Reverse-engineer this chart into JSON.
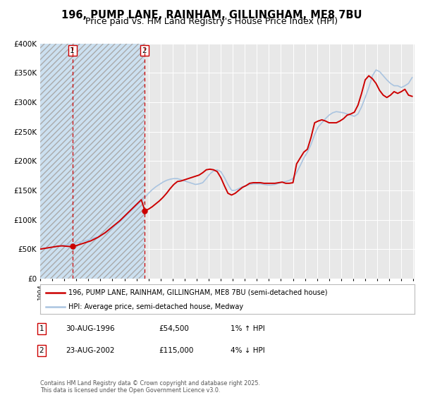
{
  "title": "196, PUMP LANE, RAINHAM, GILLINGHAM, ME8 7BU",
  "subtitle": "Price paid vs. HM Land Registry's House Price Index (HPI)",
  "title_fontsize": 10.5,
  "subtitle_fontsize": 9,
  "background_color": "#ffffff",
  "plot_bg_color": "#e8e8e8",
  "grid_color": "#ffffff",
  "hpi_color": "#aac4e0",
  "price_color": "#cc0000",
  "hatch_color": "#bbbbbb",
  "hatch_bg_color": "#ddeeff",
  "marker1_label": "1",
  "marker2_label": "2",
  "sale1_date": "30-AUG-1996",
  "sale1_price": "£54,500",
  "sale1_hpi": "1% ↑ HPI",
  "sale2_date": "23-AUG-2002",
  "sale2_price": "£115,000",
  "sale2_hpi": "4% ↓ HPI",
  "legend_label_price": "196, PUMP LANE, RAINHAM, GILLINGHAM, ME8 7BU (semi-detached house)",
  "legend_label_hpi": "HPI: Average price, semi-detached house, Medway",
  "footer": "Contains HM Land Registry data © Crown copyright and database right 2025.\nThis data is licensed under the Open Government Licence v3.0.",
  "ylim": [
    0,
    400000
  ],
  "yticks": [
    0,
    50000,
    100000,
    150000,
    200000,
    250000,
    300000,
    350000,
    400000
  ],
  "ytick_labels": [
    "£0",
    "£50K",
    "£100K",
    "£150K",
    "£200K",
    "£250K",
    "£300K",
    "£350K",
    "£400K"
  ],
  "year_start": 1994,
  "year_end": 2025,
  "sale1_year": 1996.67,
  "sale1_value": 54500,
  "sale2_year": 2002.65,
  "sale2_value": 115000,
  "hpi_years": [
    1994.0,
    1994.3,
    1994.6,
    1994.9,
    1995.2,
    1995.5,
    1995.8,
    1996.1,
    1996.4,
    1996.7,
    1997.0,
    1997.3,
    1997.6,
    1997.9,
    1998.2,
    1998.5,
    1998.8,
    1999.1,
    1999.4,
    1999.7,
    2000.0,
    2000.3,
    2000.6,
    2000.9,
    2001.2,
    2001.5,
    2001.8,
    2002.1,
    2002.4,
    2002.7,
    2003.0,
    2003.3,
    2003.6,
    2003.9,
    2004.2,
    2004.5,
    2004.8,
    2005.1,
    2005.4,
    2005.7,
    2006.0,
    2006.3,
    2006.6,
    2006.9,
    2007.2,
    2007.5,
    2007.8,
    2008.1,
    2008.4,
    2008.7,
    2009.0,
    2009.3,
    2009.6,
    2009.9,
    2010.2,
    2010.5,
    2010.8,
    2011.1,
    2011.4,
    2011.7,
    2012.0,
    2012.3,
    2012.6,
    2012.9,
    2013.2,
    2013.5,
    2013.8,
    2014.1,
    2014.4,
    2014.7,
    2015.0,
    2015.3,
    2015.6,
    2015.9,
    2016.2,
    2016.5,
    2016.8,
    2017.1,
    2017.4,
    2017.7,
    2018.0,
    2018.3,
    2018.6,
    2018.9,
    2019.2,
    2019.5,
    2019.8,
    2020.1,
    2020.4,
    2020.7,
    2021.0,
    2021.3,
    2021.6,
    2021.9,
    2022.2,
    2022.5,
    2022.8,
    2023.1,
    2023.4,
    2023.7,
    2024.0,
    2024.3,
    2024.6,
    2024.9
  ],
  "hpi_values": [
    50000,
    51000,
    52000,
    53000,
    54000,
    55000,
    56000,
    57000,
    58000,
    59000,
    60500,
    62000,
    63500,
    65000,
    67000,
    69000,
    71000,
    74000,
    77000,
    81000,
    86000,
    91000,
    96000,
    102000,
    108000,
    114000,
    120000,
    126000,
    132000,
    138000,
    145000,
    151000,
    156000,
    160000,
    164000,
    167000,
    169000,
    170000,
    170000,
    168000,
    166000,
    164000,
    162000,
    160000,
    161000,
    163000,
    170000,
    178000,
    183000,
    185000,
    182000,
    172000,
    160000,
    150000,
    150000,
    153000,
    156000,
    158000,
    160000,
    161000,
    161000,
    161000,
    160000,
    159000,
    159000,
    160000,
    162000,
    164000,
    165000,
    167000,
    170000,
    180000,
    192000,
    205000,
    215000,
    228000,
    245000,
    258000,
    265000,
    272000,
    278000,
    282000,
    284000,
    283000,
    282000,
    280000,
    278000,
    276000,
    280000,
    292000,
    308000,
    325000,
    345000,
    355000,
    352000,
    345000,
    338000,
    332000,
    328000,
    328000,
    325000,
    328000,
    332000,
    342000
  ],
  "price_years": [
    1994.0,
    1994.3,
    1994.6,
    1994.9,
    1995.2,
    1995.5,
    1995.8,
    1996.1,
    1996.4,
    1996.7,
    1997.0,
    1997.3,
    1997.6,
    1997.9,
    1998.2,
    1998.5,
    1998.8,
    1999.1,
    1999.4,
    1999.7,
    2000.0,
    2000.3,
    2000.6,
    2000.9,
    2001.2,
    2001.5,
    2001.8,
    2002.1,
    2002.4,
    2002.7,
    2003.0,
    2003.3,
    2003.6,
    2003.9,
    2004.2,
    2004.5,
    2004.8,
    2005.1,
    2005.4,
    2005.7,
    2006.0,
    2006.3,
    2006.6,
    2006.9,
    2007.2,
    2007.5,
    2007.8,
    2008.1,
    2008.4,
    2008.7,
    2009.0,
    2009.3,
    2009.6,
    2009.9,
    2010.2,
    2010.5,
    2010.8,
    2011.1,
    2011.4,
    2011.7,
    2012.0,
    2012.3,
    2012.6,
    2012.9,
    2013.2,
    2013.5,
    2013.8,
    2014.1,
    2014.4,
    2014.7,
    2015.0,
    2015.3,
    2015.6,
    2015.9,
    2016.2,
    2016.5,
    2016.8,
    2017.1,
    2017.4,
    2017.7,
    2018.0,
    2018.3,
    2018.6,
    2018.9,
    2019.2,
    2019.5,
    2019.8,
    2020.1,
    2020.4,
    2020.7,
    2021.0,
    2021.3,
    2021.6,
    2021.9,
    2022.2,
    2022.5,
    2022.8,
    2023.1,
    2023.4,
    2023.7,
    2024.0,
    2024.3,
    2024.6,
    2024.9
  ],
  "price_values": [
    50000,
    51000,
    52000,
    53000,
    54000,
    55000,
    55500,
    55000,
    54500,
    54500,
    56000,
    58000,
    60000,
    62000,
    64000,
    67000,
    70000,
    74000,
    78000,
    83000,
    88000,
    93000,
    98000,
    104000,
    110000,
    116000,
    122000,
    128000,
    134000,
    115000,
    118000,
    122000,
    127000,
    132000,
    138000,
    145000,
    153000,
    160000,
    165000,
    166000,
    168000,
    170000,
    172000,
    174000,
    176000,
    180000,
    185000,
    186000,
    185000,
    182000,
    172000,
    158000,
    145000,
    142000,
    145000,
    150000,
    155000,
    158000,
    162000,
    163000,
    163000,
    163000,
    162000,
    162000,
    162000,
    162000,
    163000,
    164000,
    162000,
    162000,
    163000,
    195000,
    205000,
    215000,
    220000,
    240000,
    265000,
    268000,
    270000,
    268000,
    265000,
    265000,
    265000,
    268000,
    272000,
    278000,
    280000,
    283000,
    295000,
    315000,
    338000,
    345000,
    340000,
    332000,
    320000,
    312000,
    308000,
    312000,
    318000,
    315000,
    318000,
    322000,
    312000,
    310000
  ]
}
